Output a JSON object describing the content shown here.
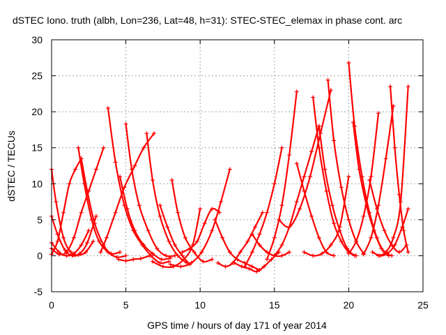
{
  "chart_data": {
    "type": "line",
    "title": "dSTEC Iono. truth (albh, Lon=236, Lat=48, h=31): STEC-STEC_elemax in phase cont. arc",
    "xlabel": "GPS time / hours of day 171 of year 2014",
    "ylabel": "dSTEC  / TECUs",
    "xlim": [
      0,
      25
    ],
    "ylim": [
      -5,
      30
    ],
    "xticks": [
      0,
      5,
      10,
      15,
      20,
      25
    ],
    "yticks": [
      -5,
      0,
      5,
      10,
      15,
      20,
      25,
      30
    ],
    "grid": true,
    "marker": "plus",
    "color": "#ff0000",
    "series": [
      {
        "x": [
          0.0,
          0.3,
          0.8,
          1.3,
          1.8,
          2.3,
          2.8
        ],
        "y": [
          12.0,
          7.5,
          2.5,
          0.5,
          0.1,
          0.5,
          2.0
        ]
      },
      {
        "x": [
          0.0,
          0.4,
          0.9,
          1.4,
          1.9,
          2.4,
          3.0
        ],
        "y": [
          5.5,
          3.0,
          0.8,
          0.0,
          0.3,
          1.8,
          5.5
        ]
      },
      {
        "x": [
          0.0,
          0.5,
          1.0,
          1.5,
          2.0,
          2.5
        ],
        "y": [
          1.8,
          0.5,
          0.0,
          0.3,
          1.5,
          3.5
        ]
      },
      {
        "x": [
          0.0,
          0.4,
          0.8,
          1.2,
          1.6,
          2.0
        ],
        "y": [
          0.2,
          2.0,
          6.0,
          10.0,
          12.0,
          13.5
        ]
      },
      {
        "x": [
          0.0,
          0.5,
          1.0,
          1.5,
          2.0,
          2.5,
          3.0,
          3.5
        ],
        "y": [
          1.0,
          0.2,
          0.5,
          2.5,
          6.0,
          9.0,
          12.0,
          15.0
        ]
      },
      {
        "x": [
          1.8,
          2.2,
          2.7,
          3.2,
          3.8,
          4.4,
          5.0
        ],
        "y": [
          15.0,
          10.0,
          5.0,
          2.0,
          0.5,
          -0.2,
          0.0
        ]
      },
      {
        "x": [
          2.0,
          2.4,
          2.9,
          3.5,
          4.0,
          4.6
        ],
        "y": [
          13.5,
          9.0,
          4.5,
          1.5,
          0.3,
          0.5
        ]
      },
      {
        "x": [
          3.3,
          3.7,
          4.3,
          4.9,
          5.6,
          6.2,
          6.9
        ],
        "y": [
          0.5,
          2.5,
          6.0,
          9.5,
          12.5,
          15.0,
          17.0
        ]
      },
      {
        "x": [
          3.8,
          4.3,
          4.9,
          5.5,
          6.1,
          6.7,
          7.3,
          7.9
        ],
        "y": [
          20.5,
          13.0,
          7.0,
          3.5,
          1.5,
          0.0,
          -1.0,
          -0.8
        ]
      },
      {
        "x": [
          4.6,
          5.1,
          5.6,
          6.2,
          6.8,
          7.4,
          8.0
        ],
        "y": [
          11.0,
          6.5,
          3.5,
          1.5,
          0.3,
          -0.5,
          -0.3
        ]
      },
      {
        "x": [
          5.0,
          5.4,
          5.9,
          6.5,
          7.1,
          7.7,
          8.3
        ],
        "y": [
          18.3,
          12.0,
          7.0,
          3.5,
          1.0,
          0.0,
          0.0
        ]
      },
      {
        "x": [
          4.5,
          5.0,
          5.5,
          6.0,
          6.6
        ],
        "y": [
          -0.5,
          -0.7,
          -0.5,
          -0.4,
          0.0
        ]
      },
      {
        "x": [
          6.4,
          6.8,
          7.3,
          7.9,
          8.5,
          9.1
        ],
        "y": [
          17.0,
          10.5,
          5.5,
          2.0,
          0.0,
          -1.0
        ]
      },
      {
        "x": [
          7.3,
          7.8,
          8.3,
          8.8,
          9.3
        ],
        "y": [
          7.0,
          4.0,
          1.5,
          0.0,
          -1.2
        ]
      },
      {
        "x": [
          8.1,
          8.5,
          9.0,
          9.6,
          10.2,
          10.8
        ],
        "y": [
          10.5,
          6.0,
          2.5,
          0.5,
          -0.8,
          -0.5
        ]
      },
      {
        "x": [
          6.8,
          7.5,
          8.2,
          8.9,
          9.5,
          10.0
        ],
        "y": [
          -0.8,
          -1.5,
          -1.5,
          -0.5,
          1.5,
          6.5
        ]
      },
      {
        "x": [
          8.0,
          8.7,
          9.4,
          10.1,
          10.8,
          11.4,
          12.0
        ],
        "y": [
          -1.2,
          -1.5,
          -1.0,
          0.5,
          3.5,
          7.5,
          12.0
        ]
      },
      {
        "x": [
          8.8,
          9.3,
          9.8,
          10.3,
          10.8,
          11.3
        ],
        "y": [
          0.5,
          1.0,
          2.0,
          4.5,
          6.5,
          6.0
        ]
      },
      {
        "x": [
          11.0,
          11.5,
          12.0,
          12.5,
          13.0,
          13.5,
          14.0
        ],
        "y": [
          5.0,
          2.5,
          0.5,
          -0.5,
          -1.0,
          -1.5,
          -2.0
        ]
      },
      {
        "x": [
          11.2,
          11.7,
          12.2,
          12.7,
          13.2,
          13.7,
          14.2
        ],
        "y": [
          -1.0,
          -1.5,
          -1.0,
          0.5,
          2.0,
          4.0,
          6.0
        ]
      },
      {
        "x": [
          12.3,
          12.8,
          13.3,
          13.8,
          14.3,
          14.8,
          15.3
        ],
        "y": [
          -1.0,
          -1.5,
          -1.8,
          -2.2,
          -1.5,
          -0.5,
          0.5
        ]
      },
      {
        "x": [
          13.5,
          14.0,
          14.5,
          15.0,
          15.5,
          16.0
        ],
        "y": [
          3.0,
          1.5,
          0.5,
          0.0,
          0.0,
          0.5
        ]
      },
      {
        "x": [
          13.0,
          13.5,
          14.0,
          14.5,
          15.0,
          15.5
        ],
        "y": [
          -1.5,
          0.5,
          3.0,
          6.0,
          10.0,
          15.0
        ]
      },
      {
        "x": [
          15.0,
          15.5,
          16.0,
          16.5,
          17.0,
          17.5,
          18.0
        ],
        "y": [
          0.0,
          1.5,
          4.0,
          7.5,
          11.0,
          14.5,
          18.0
        ]
      },
      {
        "x": [
          14.5,
          15.0,
          15.5,
          16.0,
          16.5
        ],
        "y": [
          -0.5,
          2.5,
          7.0,
          14.0,
          22.8
        ]
      },
      {
        "x": [
          16.5,
          17.0,
          17.5,
          18.0,
          18.5,
          19.0
        ],
        "y": [
          12.8,
          9.0,
          5.5,
          2.5,
          0.5,
          0.0
        ]
      },
      {
        "x": [
          15.3,
          16.0,
          16.7,
          17.4,
          18.1,
          18.8
        ],
        "y": [
          5.0,
          4.0,
          6.5,
          11.0,
          17.0,
          23.0
        ]
      },
      {
        "x": [
          17.6,
          18.0,
          18.5,
          19.0,
          19.5,
          20.0,
          20.5
        ],
        "y": [
          22.0,
          15.0,
          9.0,
          4.5,
          2.0,
          0.5,
          0.0
        ]
      },
      {
        "x": [
          18.0,
          18.4,
          18.9,
          19.4,
          19.9,
          20.4
        ],
        "y": [
          18.0,
          12.0,
          7.0,
          3.5,
          1.0,
          0.0
        ]
      },
      {
        "x": [
          18.6,
          19.0,
          19.5,
          20.0,
          20.5,
          21.0
        ],
        "y": [
          24.4,
          16.0,
          9.5,
          5.0,
          2.0,
          0.3
        ]
      },
      {
        "x": [
          17.0,
          17.6,
          18.2,
          18.8,
          19.4,
          20.0
        ],
        "y": [
          0.5,
          0.0,
          0.3,
          1.5,
          4.0,
          11.0
        ]
      },
      {
        "x": [
          20.0,
          20.4,
          20.9,
          21.4,
          21.9,
          22.4,
          22.9
        ],
        "y": [
          26.8,
          18.0,
          11.0,
          6.0,
          2.5,
          0.5,
          0.0
        ]
      },
      {
        "x": [
          20.3,
          20.7,
          21.2,
          21.7,
          22.2,
          22.7
        ],
        "y": [
          18.5,
          12.0,
          7.0,
          3.5,
          1.0,
          0.0
        ]
      },
      {
        "x": [
          20.0,
          20.5,
          21.0,
          21.5,
          22.0
        ],
        "y": [
          0.3,
          2.0,
          5.5,
          11.0,
          19.8
        ]
      },
      {
        "x": [
          21.0,
          21.5,
          22.0,
          22.5,
          23.0
        ],
        "y": [
          0.2,
          2.5,
          7.0,
          13.5,
          20.8
        ]
      },
      {
        "x": [
          22.0,
          22.5,
          23.0,
          23.5,
          24.0
        ],
        "y": [
          0.0,
          0.5,
          2.5,
          7.5,
          23.5
        ]
      },
      {
        "x": [
          22.8,
          23.1,
          23.4,
          23.7,
          24.0
        ],
        "y": [
          23.5,
          15.0,
          8.5,
          3.5,
          0.5
        ]
      },
      {
        "x": [
          21.6,
          22.1,
          22.6,
          23.1,
          23.6,
          24.0
        ],
        "y": [
          0.5,
          0.0,
          0.3,
          1.5,
          4.0,
          6.5
        ]
      },
      {
        "x": [
          21.4,
          21.9,
          22.4,
          22.9,
          23.4,
          23.9
        ],
        "y": [
          10.5,
          6.5,
          3.5,
          1.5,
          0.5,
          1.5
        ]
      }
    ]
  }
}
